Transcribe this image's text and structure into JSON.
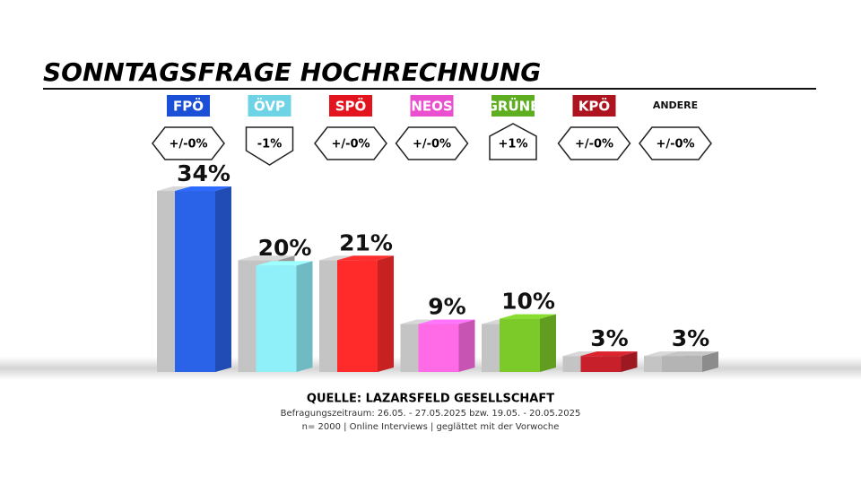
{
  "chart_data": {
    "type": "bar",
    "title": "SONNTAGSFRAGE HOCHRECHNUNG",
    "categories": [
      "FPÖ",
      "ÖVP",
      "SPÖ",
      "NEOS",
      "GRÜNE",
      "KPÖ",
      "ANDERE"
    ],
    "label_colors": [
      "#1b4fd6",
      "#6fd3e6",
      "#e3141e",
      "#e94fce",
      "#5fae22",
      "#ad1420",
      null
    ],
    "changes": [
      "+/-0%",
      "-1%",
      "+/-0%",
      "+/-0%",
      "+1%",
      "+/-0%",
      "+/-0%"
    ],
    "series": [
      {
        "color": "#c4c4c4",
        "values": [
          34,
          21,
          21,
          9,
          9,
          3,
          3
        ]
      },
      {
        "colors": [
          "#2a62e8",
          "#8ff0fa",
          "#ff2a2a",
          "#ff6ae6",
          "#7cc92a",
          "#c8202a",
          "#b4b4b4"
        ],
        "values": [
          34,
          20,
          21,
          9,
          10,
          3,
          3
        ],
        "value_labels": [
          "34%",
          "20%",
          "21%",
          "9%",
          "10%",
          "3%",
          "3%"
        ]
      }
    ],
    "source": "QUELLE: LAZARSFELD GESELLSCHAFT",
    "notes": [
      "Befragungszeitraum: 26.05. - 27.05.2025 bzw. 19.05. - 20.05.2025",
      "n= 2000 | Online Interviews | geglättet mit der Vorwoche"
    ]
  }
}
